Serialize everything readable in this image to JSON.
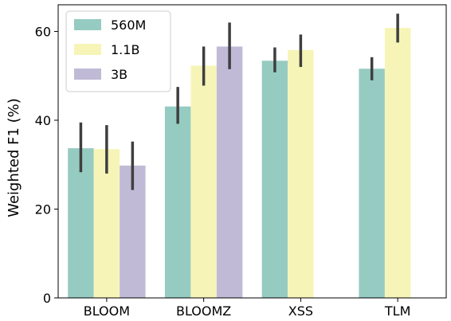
{
  "chart_data": {
    "type": "bar",
    "title": "",
    "xlabel": "",
    "ylabel": "Weighted F1 (%)",
    "ylim": [
      0,
      66
    ],
    "yticks": [
      0,
      20,
      40,
      60
    ],
    "grid": false,
    "legend_position": "top-left",
    "categories": [
      "BLOOM",
      "BLOOMZ",
      "XSS",
      "TLM"
    ],
    "series": [
      {
        "name": "560M",
        "color": "#96cbc2",
        "values": [
          33.7,
          43.1,
          53.4,
          51.6
        ],
        "err_low": [
          28.3,
          39.2,
          50.8,
          49.0
        ],
        "err_high": [
          39.5,
          47.5,
          56.4,
          54.2
        ]
      },
      {
        "name": "1.1B",
        "color": "#f6f5b7",
        "values": [
          33.5,
          52.3,
          55.8,
          60.8
        ],
        "err_low": [
          28.0,
          47.8,
          52.0,
          57.5
        ],
        "err_high": [
          38.9,
          56.6,
          59.3,
          64.0
        ]
      },
      {
        "name": "3B",
        "color": "#c0bad7",
        "values": [
          29.8,
          56.6,
          null,
          null
        ],
        "err_low": [
          24.3,
          51.5,
          null,
          null
        ],
        "err_high": [
          35.2,
          62.0,
          null,
          null
        ]
      }
    ]
  }
}
